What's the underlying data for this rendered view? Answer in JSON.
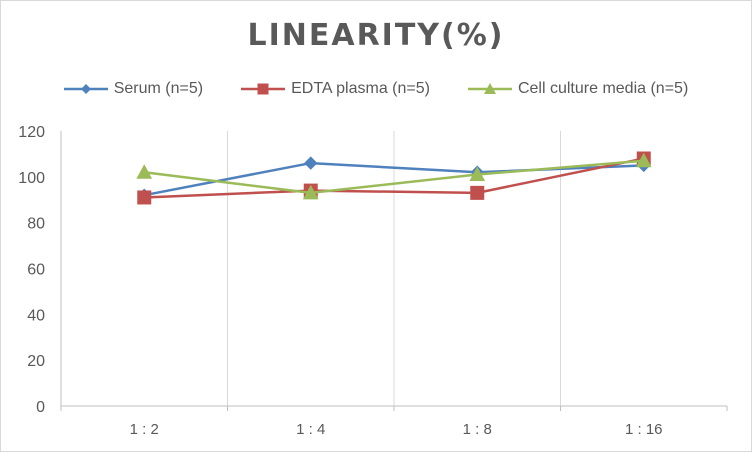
{
  "chart_data": {
    "type": "line",
    "title": "LINEARITY(%)",
    "xlabel": "",
    "ylabel": "",
    "categories": [
      "1 : 2",
      "1 : 4",
      "1 : 8",
      "1 : 16"
    ],
    "ylim": [
      0,
      120
    ],
    "yticks": [
      0,
      20,
      40,
      60,
      80,
      100,
      120
    ],
    "grid": "vertical",
    "legend_position": "top",
    "series": [
      {
        "name": "Serum (n=5)",
        "color": "#4f81bd",
        "marker": "diamond",
        "values": [
          92,
          106,
          102,
          105
        ]
      },
      {
        "name": "EDTA plasma (n=5)",
        "color": "#c0504d",
        "marker": "square",
        "values": [
          91,
          94,
          93,
          108
        ]
      },
      {
        "name": "Cell culture media (n=5)",
        "color": "#9bbb59",
        "marker": "triangle",
        "values": [
          102,
          93,
          101,
          107
        ]
      }
    ]
  }
}
